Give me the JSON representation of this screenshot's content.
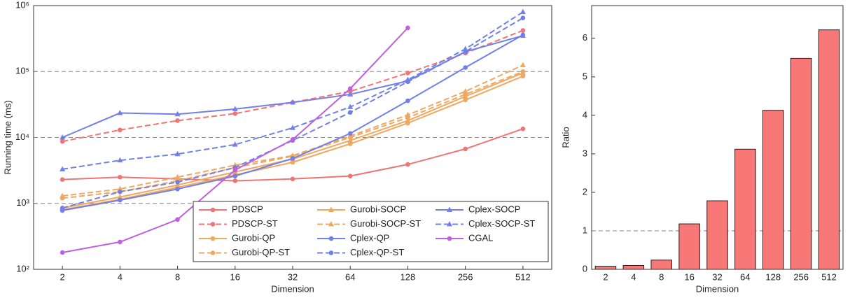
{
  "chart_data": [
    {
      "type": "line",
      "x_label": "Dimension",
      "y_label": "Running time (ms)",
      "categories": [
        "2",
        "4",
        "8",
        "16",
        "32",
        "64",
        "128",
        "256",
        "512"
      ],
      "log_scale": true,
      "ylim": [
        100,
        1000000
      ],
      "yticks": [
        {
          "value": 100,
          "label": "10²"
        },
        {
          "value": 1000,
          "label": "10³"
        },
        {
          "value": 10000,
          "label": "10⁴"
        },
        {
          "value": 100000,
          "label": "10⁵"
        },
        {
          "value": 1000000,
          "label": "10⁶"
        }
      ],
      "grid": true,
      "legend": "lower right",
      "series": [
        {
          "name": "PDSCP",
          "color": "#f07474",
          "dashed": false,
          "marker": "circle",
          "values": [
            2300,
            2500,
            2350,
            2200,
            2350,
            2600,
            3900,
            6700,
            13500
          ]
        },
        {
          "name": "PDSCP-ST",
          "color": "#f07474",
          "dashed": true,
          "marker": "circle",
          "values": [
            8700,
            13000,
            18000,
            23000,
            34000,
            50000,
            95000,
            190000,
            420000
          ]
        },
        {
          "name": "Gurobi-QP",
          "color": "#f0a860",
          "dashed": false,
          "marker": "circle",
          "values": [
            800,
            1150,
            1750,
            2700,
            4200,
            8000,
            16500,
            37000,
            85000
          ]
        },
        {
          "name": "Gurobi-QP-ST",
          "color": "#f0a860",
          "dashed": true,
          "marker": "circle",
          "values": [
            1200,
            1500,
            2200,
            3500,
            5200,
            10000,
            20000,
            45000,
            100000
          ]
        },
        {
          "name": "Gurobi-SOCP",
          "color": "#f0a860",
          "dashed": false,
          "marker": "triangle",
          "values": [
            850,
            1250,
            1900,
            3000,
            4700,
            9000,
            18000,
            42000,
            95000
          ]
        },
        {
          "name": "Gurobi-SOCP-ST",
          "color": "#f0a860",
          "dashed": true,
          "marker": "triangle",
          "values": [
            1300,
            1650,
            2500,
            3800,
            5300,
            10500,
            22000,
            50000,
            125000
          ]
        },
        {
          "name": "Cplex-QP",
          "color": "#7080e8",
          "dashed": false,
          "marker": "circle",
          "values": [
            780,
            1120,
            1650,
            2600,
            4800,
            11500,
            36000,
            115000,
            360000
          ]
        },
        {
          "name": "Cplex-QP-ST",
          "color": "#7080e8",
          "dashed": true,
          "marker": "circle",
          "values": [
            850,
            1500,
            2100,
            3500,
            9000,
            24000,
            70000,
            200000,
            650000
          ]
        },
        {
          "name": "Cplex-SOCP",
          "color": "#7080e8",
          "dashed": false,
          "marker": "triangle",
          "values": [
            10000,
            23500,
            22500,
            27000,
            34000,
            45000,
            72000,
            200000,
            350000
          ]
        },
        {
          "name": "Cplex-SOCP-ST",
          "color": "#7080e8",
          "dashed": true,
          "marker": "triangle",
          "values": [
            3300,
            4500,
            5600,
            7800,
            14000,
            29000,
            75000,
            220000,
            800000
          ]
        },
        {
          "name": "CGAL",
          "color": "#c060e0",
          "dashed": false,
          "marker": "circle",
          "values": [
            180,
            260,
            570,
            3200,
            9300,
            55000,
            460000,
            null,
            null
          ]
        }
      ]
    },
    {
      "type": "bar",
      "x_label": "Dimension",
      "y_label": "Ratio",
      "categories": [
        "2",
        "4",
        "8",
        "16",
        "32",
        "64",
        "128",
        "256",
        "512"
      ],
      "values": [
        0.08,
        0.1,
        0.24,
        1.18,
        1.78,
        3.12,
        4.13,
        5.48,
        6.22
      ],
      "color": "#f87878",
      "ylim": [
        0,
        6.85
      ],
      "yticks": [
        0,
        1,
        2,
        3,
        4,
        5,
        6
      ],
      "reference_line": 1
    }
  ]
}
